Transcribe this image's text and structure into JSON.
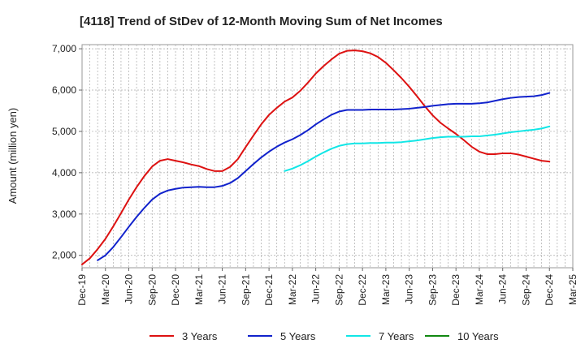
{
  "chart_data": {
    "type": "line",
    "title": "[4118]  Trend of StDev of 12-Month Moving Sum of Net Incomes",
    "xlabel": "",
    "ylabel": "Amount (million yen)",
    "x_ticks": [
      "Dec-19",
      "Mar-20",
      "Jun-20",
      "Sep-20",
      "Dec-20",
      "Mar-21",
      "Jun-21",
      "Sep-21",
      "Dec-21",
      "Mar-22",
      "Jun-22",
      "Sep-22",
      "Dec-22",
      "Mar-23",
      "Jun-23",
      "Sep-23",
      "Dec-23",
      "Mar-24",
      "Jun-24",
      "Sep-24",
      "Dec-24",
      "Mar-25"
    ],
    "y_ticks": [
      "2,000",
      "3,000",
      "4,000",
      "5,000",
      "6,000",
      "7,000"
    ],
    "ylim": [
      1700,
      7100
    ],
    "grid": true,
    "legend_position": "bottom",
    "series": [
      {
        "name": "3 Years",
        "color": "#dd1111",
        "x": [
          "2019-12",
          "2020-01",
          "2020-02",
          "2020-03",
          "2020-04",
          "2020-05",
          "2020-06",
          "2020-07",
          "2020-08",
          "2020-09",
          "2020-10",
          "2020-11",
          "2020-12",
          "2021-01",
          "2021-02",
          "2021-03",
          "2021-04",
          "2021-05",
          "2021-06",
          "2021-07",
          "2021-08",
          "2021-09",
          "2021-10",
          "2021-11",
          "2021-12",
          "2022-01",
          "2022-02",
          "2022-03",
          "2022-04",
          "2022-05",
          "2022-06",
          "2022-07",
          "2022-08",
          "2022-09",
          "2022-10",
          "2022-11",
          "2022-12",
          "2023-01",
          "2023-02",
          "2023-03",
          "2023-04",
          "2023-05",
          "2023-06",
          "2023-07",
          "2023-08",
          "2023-09",
          "2023-10",
          "2023-11",
          "2023-12",
          "2024-01",
          "2024-02",
          "2024-03",
          "2024-04",
          "2024-05",
          "2024-06",
          "2024-07",
          "2024-08",
          "2024-09",
          "2024-10",
          "2024-11",
          "2024-12"
        ],
        "values": [
          1780,
          1930,
          2150,
          2400,
          2700,
          3020,
          3350,
          3650,
          3920,
          4150,
          4290,
          4330,
          4290,
          4250,
          4200,
          4160,
          4090,
          4040,
          4040,
          4140,
          4330,
          4620,
          4900,
          5170,
          5400,
          5570,
          5720,
          5820,
          5980,
          6180,
          6400,
          6580,
          6740,
          6880,
          6950,
          6960,
          6940,
          6890,
          6800,
          6660,
          6480,
          6290,
          6080,
          5850,
          5610,
          5390,
          5210,
          5070,
          4940,
          4790,
          4630,
          4510,
          4450,
          4450,
          4470,
          4470,
          4440,
          4390,
          4340,
          4290,
          4270
        ]
      },
      {
        "name": "5 Years",
        "color": "#1122cc",
        "x": [
          "2020-02",
          "2020-03",
          "2020-04",
          "2020-05",
          "2020-06",
          "2020-07",
          "2020-08",
          "2020-09",
          "2020-10",
          "2020-11",
          "2020-12",
          "2021-01",
          "2021-02",
          "2021-03",
          "2021-04",
          "2021-05",
          "2021-06",
          "2021-07",
          "2021-08",
          "2021-09",
          "2021-10",
          "2021-11",
          "2021-12",
          "2022-01",
          "2022-02",
          "2022-03",
          "2022-04",
          "2022-05",
          "2022-06",
          "2022-07",
          "2022-08",
          "2022-09",
          "2022-10",
          "2022-11",
          "2022-12",
          "2023-01",
          "2023-02",
          "2023-03",
          "2023-04",
          "2023-05",
          "2023-06",
          "2023-07",
          "2023-08",
          "2023-09",
          "2023-10",
          "2023-11",
          "2023-12",
          "2024-01",
          "2024-02",
          "2024-03",
          "2024-04",
          "2024-05",
          "2024-06",
          "2024-07",
          "2024-08",
          "2024-09",
          "2024-10",
          "2024-11",
          "2024-12"
        ],
        "values": [
          1880,
          2000,
          2200,
          2440,
          2690,
          2930,
          3150,
          3350,
          3490,
          3570,
          3610,
          3640,
          3650,
          3660,
          3650,
          3650,
          3680,
          3750,
          3870,
          4040,
          4210,
          4370,
          4510,
          4630,
          4730,
          4810,
          4910,
          5030,
          5170,
          5290,
          5400,
          5480,
          5520,
          5520,
          5520,
          5530,
          5530,
          5530,
          5530,
          5540,
          5550,
          5570,
          5590,
          5620,
          5640,
          5660,
          5670,
          5670,
          5670,
          5680,
          5700,
          5740,
          5780,
          5810,
          5830,
          5840,
          5850,
          5880,
          5930
        ]
      },
      {
        "name": "7 Years",
        "color": "#11e6e6",
        "x": [
          "2022-02",
          "2022-03",
          "2022-04",
          "2022-05",
          "2022-06",
          "2022-07",
          "2022-08",
          "2022-09",
          "2022-10",
          "2022-11",
          "2022-12",
          "2023-01",
          "2023-02",
          "2023-03",
          "2023-04",
          "2023-05",
          "2023-06",
          "2023-07",
          "2023-08",
          "2023-09",
          "2023-10",
          "2023-11",
          "2023-12",
          "2024-01",
          "2024-02",
          "2024-03",
          "2024-04",
          "2024-05",
          "2024-06",
          "2024-07",
          "2024-08",
          "2024-09",
          "2024-10",
          "2024-11",
          "2024-12"
        ],
        "values": [
          4040,
          4100,
          4180,
          4280,
          4390,
          4490,
          4580,
          4650,
          4690,
          4710,
          4710,
          4720,
          4720,
          4730,
          4730,
          4740,
          4760,
          4780,
          4810,
          4840,
          4860,
          4870,
          4870,
          4870,
          4880,
          4880,
          4900,
          4920,
          4950,
          4980,
          5000,
          5020,
          5040,
          5070,
          5120
        ]
      },
      {
        "name": "10 Years",
        "color": "#118811",
        "x": [],
        "values": []
      }
    ]
  }
}
